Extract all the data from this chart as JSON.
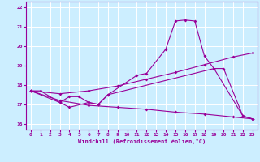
{
  "xlabel": "Windchill (Refroidissement éolien,°C)",
  "bg_color": "#cceeff",
  "line_color": "#990099",
  "grid_color": "#ffffff",
  "xlim": [
    -0.5,
    23.5
  ],
  "ylim": [
    15.7,
    22.3
  ],
  "yticks": [
    16,
    17,
    18,
    19,
    20,
    21,
    22
  ],
  "xticks": [
    0,
    1,
    2,
    3,
    4,
    5,
    6,
    7,
    8,
    9,
    10,
    11,
    12,
    13,
    14,
    15,
    16,
    17,
    18,
    19,
    20,
    21,
    22,
    23
  ],
  "s1_x": [
    0,
    1,
    3,
    4,
    5,
    6,
    7,
    8,
    11,
    12,
    14,
    15,
    16,
    17,
    18,
    19,
    20,
    22,
    23
  ],
  "s1_y": [
    17.7,
    17.7,
    17.1,
    17.4,
    17.4,
    17.1,
    17.0,
    17.5,
    18.5,
    18.6,
    19.85,
    21.3,
    21.35,
    21.3,
    19.5,
    18.85,
    18.85,
    16.4,
    16.25
  ],
  "s2_x": [
    0,
    3,
    4,
    6,
    7,
    8,
    19,
    22,
    23
  ],
  "s2_y": [
    17.7,
    17.1,
    16.85,
    17.1,
    17.0,
    17.5,
    18.85,
    16.4,
    16.25
  ],
  "s3_x": [
    0,
    3,
    6,
    9,
    12,
    15,
    18,
    21,
    23
  ],
  "s3_y": [
    17.7,
    17.55,
    17.7,
    17.95,
    18.3,
    18.65,
    19.05,
    19.45,
    19.65
  ],
  "s4_x": [
    0,
    3,
    6,
    9,
    12,
    15,
    18,
    21,
    23
  ],
  "s4_y": [
    17.7,
    17.2,
    16.95,
    16.85,
    16.75,
    16.6,
    16.5,
    16.35,
    16.25
  ]
}
